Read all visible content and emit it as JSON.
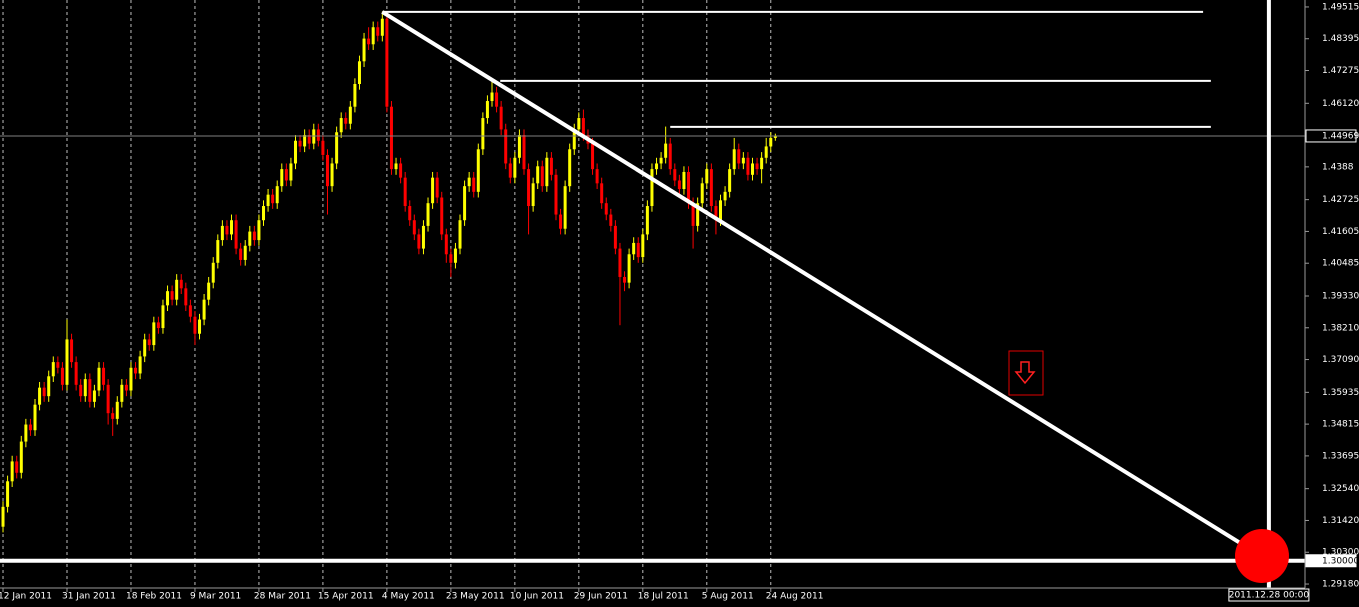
{
  "chart_data": {
    "type": "candlestick",
    "up_color": "#ffff00",
    "down_color": "#ff0000",
    "xlim": [
      -0.66,
      284.9
    ],
    "ylim": [
      1.2904,
      1.4976
    ],
    "xticks": [
      {
        "value": 0,
        "label": "12 Jan 2011"
      },
      {
        "value": 14,
        "label": "31 Jan 2011"
      },
      {
        "value": 28,
        "label": "18 Feb 2011"
      },
      {
        "value": 42,
        "label": "9 Mar 2011"
      },
      {
        "value": 56,
        "label": "28 Mar 2011"
      },
      {
        "value": 70,
        "label": "15 Apr 2011"
      },
      {
        "value": 84,
        "label": "4 May 2011"
      },
      {
        "value": 98,
        "label": "23 May 2011"
      },
      {
        "value": 112,
        "label": "10 Jun 2011"
      },
      {
        "value": 126,
        "label": "29 Jun 2011"
      },
      {
        "value": 140,
        "label": "18 Jul 2011"
      },
      {
        "value": 154,
        "label": "5 Aug 2011"
      },
      {
        "value": 168,
        "label": "24 Aug 2011"
      }
    ],
    "yticks": [
      1.49515,
      1.48395,
      1.47275,
      {
        "value": 1.4612,
        "label": "1.46120"
      },
      1.4388,
      1.42725,
      1.41605,
      1.40485,
      {
        "value": 1.3933,
        "label": "1.39330"
      },
      {
        "value": 1.3821,
        "label": "1.38210"
      },
      {
        "value": 1.3709,
        "label": "1.37090"
      },
      1.35935,
      1.34815,
      1.33695,
      {
        "value": 1.3254,
        "label": "1.32540"
      },
      {
        "value": 1.3142,
        "label": "1.31420"
      },
      {
        "value": 1.303,
        "label": "1.30300"
      },
      {
        "value": 1.2918,
        "label": "1.29180"
      }
    ],
    "price_markers": [
      1.44969,
      {
        "value": 1.3,
        "label": "1.30000"
      }
    ],
    "grid": true,
    "open": [
      1.312,
      1.319,
      1.328,
      1.335,
      1.331,
      1.342,
      1.348,
      1.346,
      1.355,
      1.361,
      1.358,
      1.365,
      1.37,
      1.368,
      1.362,
      1.378,
      1.37,
      1.362,
      1.358,
      1.364,
      1.356,
      1.36,
      1.368,
      1.362,
      1.352,
      1.35,
      1.356,
      1.362,
      1.36,
      1.368,
      1.366,
      1.372,
      1.378,
      1.376,
      1.384,
      1.382,
      1.39,
      1.395,
      1.392,
      1.399,
      1.396,
      1.39,
      1.386,
      1.38,
      1.385,
      1.392,
      1.398,
      1.405,
      1.413,
      1.418,
      1.415,
      1.42,
      1.41,
      1.406,
      1.411,
      1.416,
      1.413,
      1.42,
      1.425,
      1.429,
      1.426,
      1.432,
      1.438,
      1.434,
      1.44,
      1.448,
      1.446,
      1.45,
      1.447,
      1.452,
      1.448,
      1.443,
      1.432,
      1.44,
      1.451,
      1.456,
      1.454,
      1.46,
      1.468,
      1.476,
      1.484,
      1.482,
      1.488,
      1.485,
      1.491,
      1.46,
      1.438,
      1.44,
      1.435,
      1.425,
      1.42,
      1.415,
      1.41,
      1.418,
      1.426,
      1.435,
      1.428,
      1.415,
      1.408,
      1.405,
      1.41,
      1.42,
      1.432,
      1.435,
      1.43,
      1.445,
      1.456,
      1.462,
      1.465,
      1.46,
      1.452,
      1.44,
      1.435,
      1.442,
      1.45,
      1.438,
      1.425,
      1.433,
      1.439,
      1.432,
      1.442,
      1.436,
      1.422,
      1.417,
      1.432,
      1.445,
      1.452,
      1.456,
      1.45,
      1.447,
      1.438,
      1.433,
      1.426,
      1.422,
      1.418,
      1.41,
      1.4,
      1.398,
      1.408,
      1.412,
      1.407,
      1.415,
      1.425,
      1.438,
      1.44,
      1.442,
      1.447,
      1.438,
      1.434,
      1.431,
      1.437,
      1.426,
      1.418,
      1.426,
      1.433,
      1.438,
      1.425,
      1.42,
      1.427,
      1.43,
      1.438,
      1.445,
      1.44,
      1.442,
      1.436,
      1.44,
      1.438,
      1.442,
      1.446,
      1.449
    ],
    "high": [
      1.321,
      1.33,
      1.337,
      1.337,
      1.344,
      1.35,
      1.35,
      1.357,
      1.363,
      1.363,
      1.367,
      1.372,
      1.372,
      1.37,
      1.385,
      1.38,
      1.372,
      1.364,
      1.366,
      1.366,
      1.362,
      1.37,
      1.37,
      1.364,
      1.354,
      1.358,
      1.364,
      1.364,
      1.37,
      1.37,
      1.374,
      1.38,
      1.38,
      1.386,
      1.386,
      1.392,
      1.397,
      1.397,
      1.401,
      1.401,
      1.398,
      1.392,
      1.388,
      1.387,
      1.394,
      1.4,
      1.407,
      1.415,
      1.42,
      1.42,
      1.422,
      1.422,
      1.412,
      1.413,
      1.418,
      1.418,
      1.422,
      1.427,
      1.431,
      1.431,
      1.434,
      1.44,
      1.44,
      1.442,
      1.45,
      1.45,
      1.452,
      1.452,
      1.454,
      1.454,
      1.45,
      1.445,
      1.442,
      1.453,
      1.458,
      1.458,
      1.462,
      1.47,
      1.478,
      1.486,
      1.488,
      1.49,
      1.49,
      1.4935,
      1.493,
      1.462,
      1.442,
      1.442,
      1.437,
      1.427,
      1.422,
      1.417,
      1.42,
      1.428,
      1.437,
      1.437,
      1.43,
      1.417,
      1.41,
      1.412,
      1.422,
      1.434,
      1.437,
      1.437,
      1.447,
      1.458,
      1.464,
      1.469,
      1.467,
      1.462,
      1.454,
      1.442,
      1.444,
      1.452,
      1.452,
      1.44,
      1.435,
      1.441,
      1.441,
      1.444,
      1.444,
      1.438,
      1.424,
      1.434,
      1.447,
      1.454,
      1.458,
      1.459,
      1.452,
      1.449,
      1.44,
      1.435,
      1.428,
      1.424,
      1.42,
      1.412,
      1.402,
      1.41,
      1.414,
      1.414,
      1.417,
      1.427,
      1.44,
      1.442,
      1.444,
      1.453,
      1.449,
      1.44,
      1.436,
      1.439,
      1.439,
      1.428,
      1.428,
      1.435,
      1.44,
      1.44,
      1.427,
      1.429,
      1.432,
      1.44,
      1.449,
      1.447,
      1.444,
      1.444,
      1.442,
      1.442,
      1.444,
      1.449,
      1.451,
      1.4505
    ],
    "low": [
      1.31,
      1.317,
      1.326,
      1.329,
      1.329,
      1.34,
      1.344,
      1.344,
      1.353,
      1.356,
      1.356,
      1.363,
      1.366,
      1.36,
      1.36,
      1.368,
      1.36,
      1.356,
      1.356,
      1.354,
      1.354,
      1.358,
      1.36,
      1.348,
      1.344,
      1.348,
      1.354,
      1.358,
      1.358,
      1.364,
      1.364,
      1.37,
      1.374,
      1.374,
      1.38,
      1.38,
      1.388,
      1.39,
      1.39,
      1.394,
      1.388,
      1.384,
      1.376,
      1.378,
      1.383,
      1.39,
      1.396,
      1.403,
      1.411,
      1.413,
      1.413,
      1.408,
      1.404,
      1.404,
      1.409,
      1.411,
      1.411,
      1.418,
      1.423,
      1.424,
      1.424,
      1.43,
      1.432,
      1.432,
      1.438,
      1.444,
      1.444,
      1.445,
      1.445,
      1.446,
      1.441,
      1.422,
      1.43,
      1.438,
      1.449,
      1.452,
      1.452,
      1.458,
      1.466,
      1.474,
      1.48,
      1.48,
      1.483,
      1.483,
      1.458,
      1.436,
      1.436,
      1.433,
      1.423,
      1.418,
      1.413,
      1.408,
      1.408,
      1.416,
      1.424,
      1.426,
      1.413,
      1.405,
      1.4,
      1.403,
      1.408,
      1.418,
      1.43,
      1.428,
      1.428,
      1.443,
      1.454,
      1.46,
      1.458,
      1.45,
      1.438,
      1.433,
      1.433,
      1.44,
      1.436,
      1.415,
      1.423,
      1.431,
      1.43,
      1.43,
      1.434,
      1.42,
      1.415,
      1.415,
      1.43,
      1.443,
      1.45,
      1.448,
      1.445,
      1.436,
      1.431,
      1.424,
      1.42,
      1.416,
      1.408,
      1.383,
      1.395,
      1.396,
      1.406,
      1.405,
      1.405,
      1.413,
      1.423,
      1.436,
      1.438,
      1.44,
      1.436,
      1.432,
      1.429,
      1.429,
      1.424,
      1.41,
      1.416,
      1.424,
      1.431,
      1.423,
      1.415,
      1.418,
      1.425,
      1.428,
      1.436,
      1.438,
      1.438,
      1.434,
      1.434,
      1.436,
      1.433,
      1.44,
      1.444,
      1.448
    ],
    "close": [
      1.319,
      1.328,
      1.335,
      1.331,
      1.342,
      1.348,
      1.346,
      1.355,
      1.361,
      1.358,
      1.365,
      1.37,
      1.368,
      1.362,
      1.378,
      1.37,
      1.362,
      1.358,
      1.364,
      1.356,
      1.36,
      1.368,
      1.362,
      1.352,
      1.35,
      1.356,
      1.362,
      1.36,
      1.368,
      1.366,
      1.372,
      1.378,
      1.376,
      1.384,
      1.382,
      1.39,
      1.395,
      1.392,
      1.399,
      1.396,
      1.39,
      1.386,
      1.38,
      1.385,
      1.392,
      1.398,
      1.405,
      1.413,
      1.418,
      1.415,
      1.42,
      1.41,
      1.406,
      1.411,
      1.416,
      1.413,
      1.42,
      1.425,
      1.429,
      1.426,
      1.432,
      1.438,
      1.434,
      1.44,
      1.448,
      1.446,
      1.45,
      1.447,
      1.452,
      1.448,
      1.443,
      1.432,
      1.44,
      1.451,
      1.456,
      1.454,
      1.46,
      1.468,
      1.476,
      1.484,
      1.482,
      1.488,
      1.485,
      1.491,
      1.46,
      1.438,
      1.44,
      1.435,
      1.425,
      1.42,
      1.415,
      1.41,
      1.418,
      1.426,
      1.435,
      1.428,
      1.415,
      1.408,
      1.405,
      1.41,
      1.42,
      1.432,
      1.435,
      1.43,
      1.445,
      1.456,
      1.462,
      1.465,
      1.46,
      1.452,
      1.44,
      1.435,
      1.442,
      1.45,
      1.438,
      1.425,
      1.433,
      1.439,
      1.432,
      1.442,
      1.436,
      1.422,
      1.417,
      1.432,
      1.445,
      1.452,
      1.456,
      1.45,
      1.447,
      1.438,
      1.433,
      1.426,
      1.422,
      1.418,
      1.41,
      1.4,
      1.398,
      1.408,
      1.412,
      1.407,
      1.415,
      1.425,
      1.438,
      1.44,
      1.442,
      1.447,
      1.438,
      1.434,
      1.431,
      1.437,
      1.426,
      1.418,
      1.426,
      1.433,
      1.438,
      1.425,
      1.42,
      1.427,
      1.43,
      1.438,
      1.445,
      1.44,
      1.442,
      1.436,
      1.44,
      1.438,
      1.442,
      1.446,
      1.449,
      1.4497
    ],
    "levels": [
      {
        "start": 83,
        "end": 262.6,
        "price": 1.4934
      },
      {
        "start": 108.8,
        "end": 264.3,
        "price": 1.4691
      },
      {
        "start": 146,
        "end": 264.3,
        "price": 1.4529
      }
    ],
    "trendline": {
      "start": {
        "x": 83,
        "price": 1.4934
      },
      "end": {
        "x": 276,
        "price": 1.301
      }
    },
    "vline": {
      "x": 277,
      "label": "2011.12.28 00:00"
    }
  }
}
